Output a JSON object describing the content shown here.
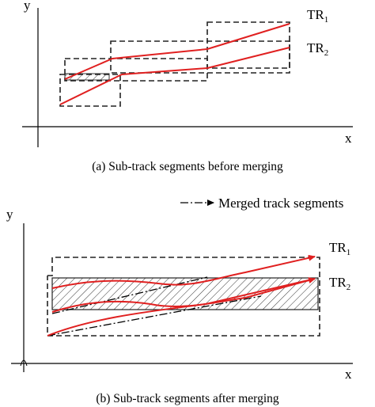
{
  "panel_a": {
    "y_label": "y",
    "x_label": "x",
    "track1_label": "TR",
    "track1_sub": "1",
    "track2_label": "TR",
    "track2_sub": "2",
    "caption": "(a) Sub-track segments before merging"
  },
  "panel_b": {
    "y_label": "y",
    "x_label": "x",
    "legend_label": "Merged track segments",
    "track1_label": "TR",
    "track1_sub": "1",
    "track2_label": "TR",
    "track2_sub": "2",
    "caption": "(b) Sub-track segments after merging"
  },
  "colors": {
    "track": "#e02020",
    "merged": "#000000",
    "box": "#222222"
  }
}
